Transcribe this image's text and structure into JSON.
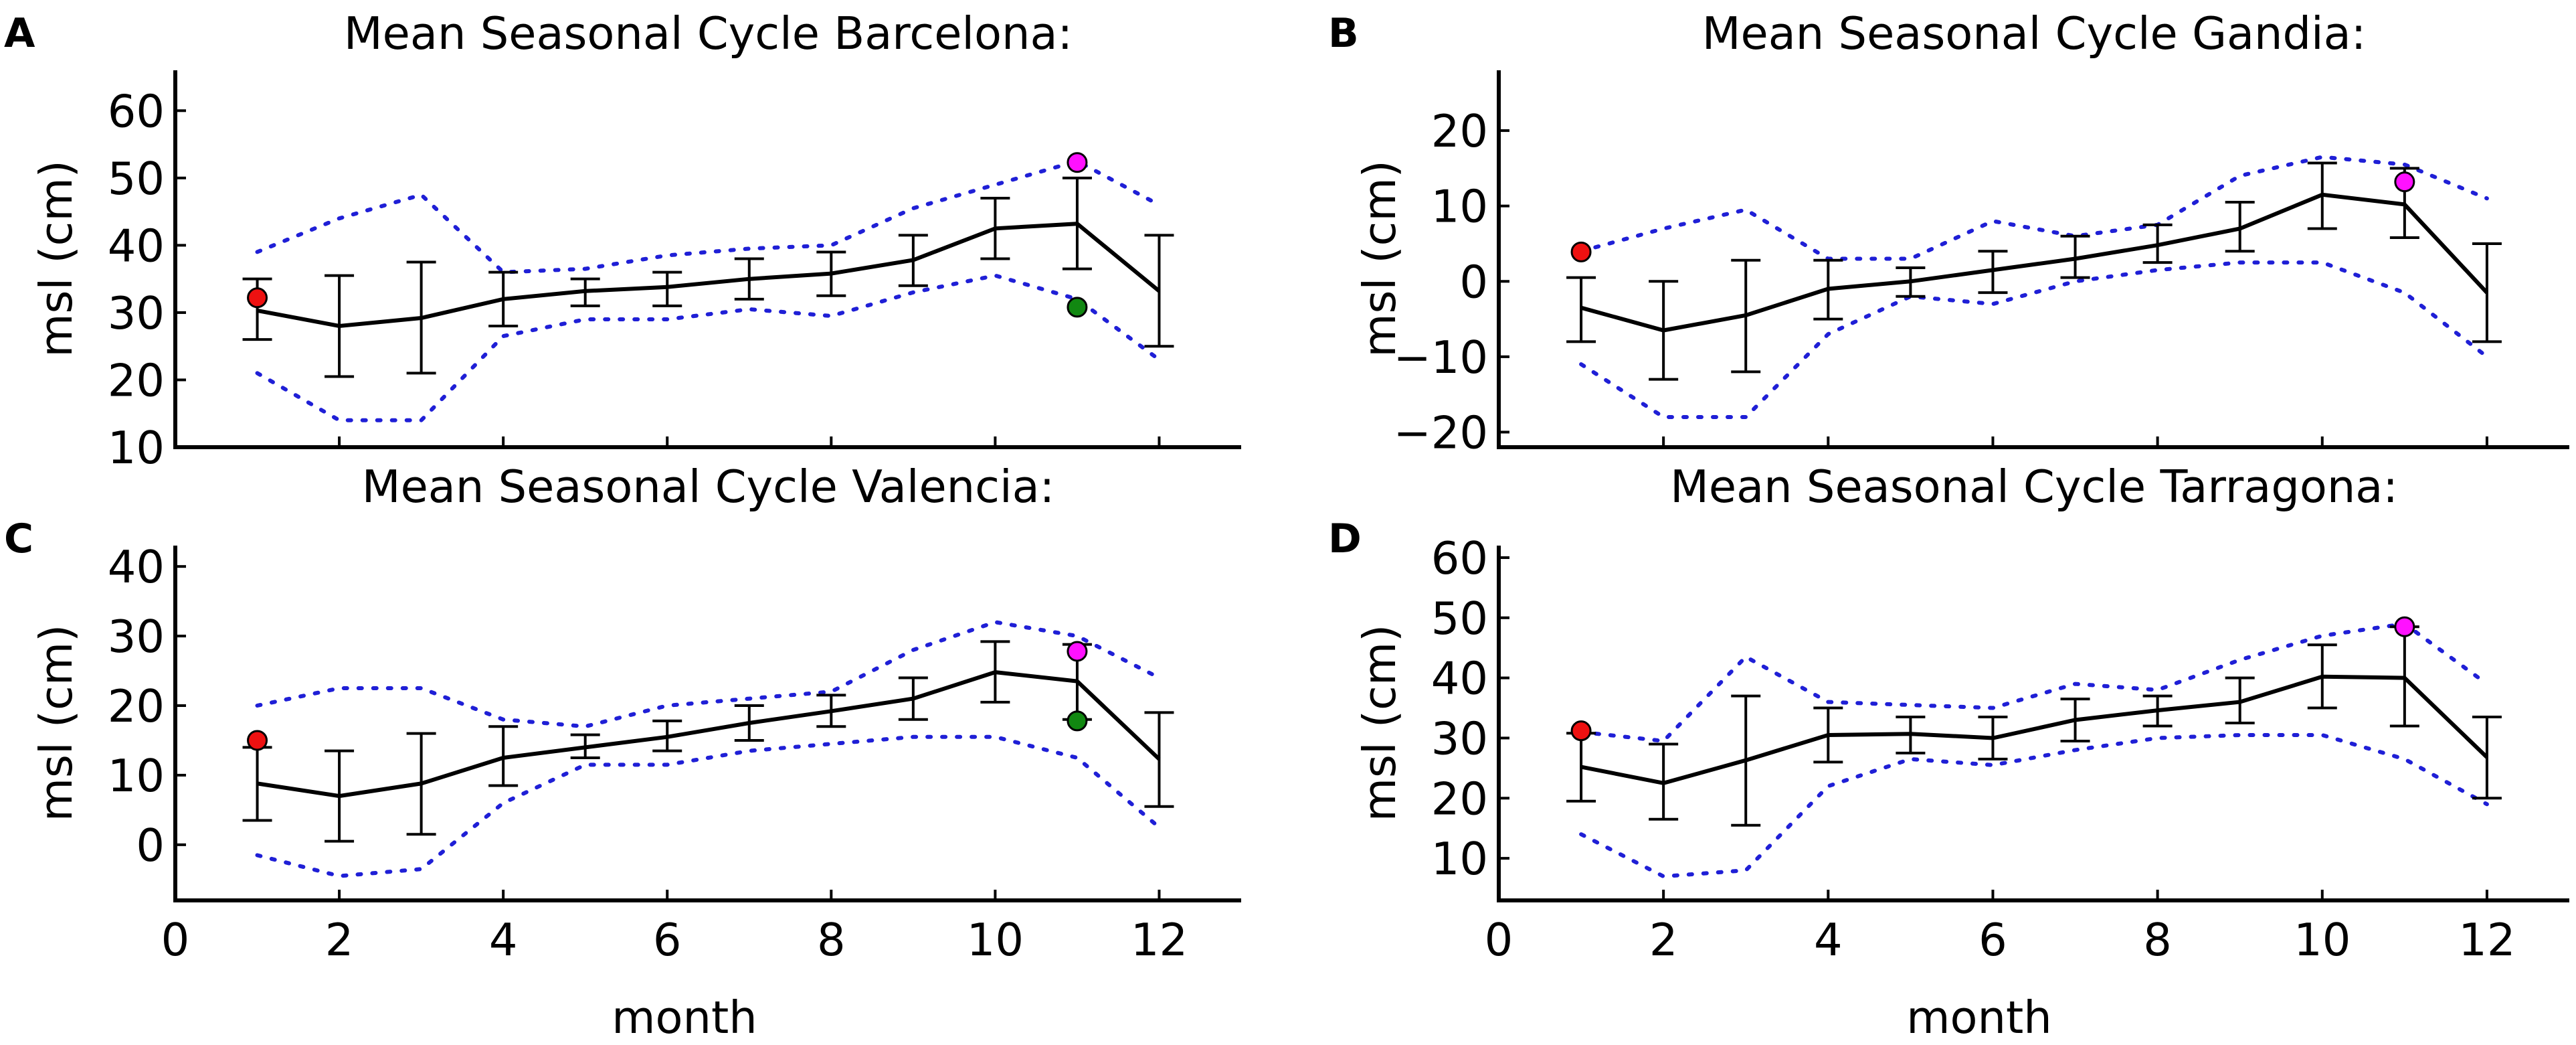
{
  "figure": {
    "xlabel_bottom": "month"
  },
  "colors": {
    "mean": "#000000",
    "bounds": "#1f1fd6",
    "red": "#ee1111",
    "magenta": "#ff11ff",
    "green": "#118811"
  },
  "chart_data": [
    {
      "letter": "A",
      "title": "Mean Seasonal Cycle Barcelona:",
      "type": "line",
      "ylabel": "msl (cm)",
      "xlabel": "",
      "xlim": [
        0,
        13
      ],
      "ylim": [
        10,
        66
      ],
      "xticks": [
        0,
        2,
        4,
        6,
        8,
        10,
        12
      ],
      "yticks": [
        10,
        20,
        30,
        40,
        50,
        60
      ],
      "series": [
        {
          "name": "mean",
          "x": [
            1,
            2,
            3,
            4,
            5,
            6,
            7,
            8,
            9,
            10,
            11,
            12
          ],
          "values": [
            30.3,
            28,
            29.2,
            32,
            33.2,
            33.8,
            35,
            35.8,
            37.8,
            42.5,
            43.2,
            33.2
          ]
        },
        {
          "name": "error_low",
          "x": [
            1,
            2,
            3,
            4,
            5,
            6,
            7,
            8,
            9,
            10,
            11,
            12
          ],
          "values": [
            26,
            20.5,
            21,
            28,
            31,
            31,
            32,
            32.5,
            34,
            38,
            36.5,
            25
          ]
        },
        {
          "name": "error_high",
          "x": [
            1,
            2,
            3,
            4,
            5,
            6,
            7,
            8,
            9,
            10,
            11,
            12
          ],
          "values": [
            35,
            35.5,
            37.5,
            36,
            35,
            36,
            38,
            39,
            41.5,
            47,
            50,
            41.5
          ]
        },
        {
          "name": "upper_bound",
          "x": [
            1,
            2,
            3,
            4,
            5,
            6,
            7,
            8,
            9,
            10,
            11,
            12
          ],
          "values": [
            39,
            44,
            47.5,
            36,
            36.5,
            38.5,
            39.5,
            40,
            45.5,
            49,
            52.5,
            46
          ]
        },
        {
          "name": "lower_bound",
          "x": [
            1,
            2,
            3,
            4,
            5,
            6,
            7,
            8,
            9,
            10,
            11,
            12
          ],
          "values": [
            21,
            14,
            14,
            26.5,
            29,
            29,
            30.5,
            29.5,
            33,
            35.5,
            32,
            23
          ]
        }
      ],
      "points": [
        {
          "color": "red",
          "x": 1,
          "y": 32.2
        },
        {
          "color": "magenta",
          "x": 11,
          "y": 52.3
        },
        {
          "color": "green",
          "x": 11,
          "y": 30.8
        }
      ]
    },
    {
      "letter": "B",
      "title": "Mean Seasonal Cycle Gandia:",
      "type": "line",
      "ylabel": "msl (cm)",
      "xlabel": "",
      "xlim": [
        0,
        13
      ],
      "ylim": [
        -22,
        28
      ],
      "xticks": [
        0,
        2,
        4,
        6,
        8,
        10,
        12
      ],
      "yticks": [
        -20,
        -10,
        0,
        10,
        20
      ],
      "ytick_labels": [
        "−20",
        "−10",
        "0",
        "10",
        "20"
      ],
      "series": [
        {
          "name": "mean",
          "x": [
            1,
            2,
            3,
            4,
            5,
            6,
            7,
            8,
            9,
            10,
            11,
            12
          ],
          "values": [
            -3.5,
            -6.5,
            -4.5,
            -1,
            0,
            1.5,
            3,
            4.8,
            7,
            11.5,
            10.2,
            -1.5
          ]
        },
        {
          "name": "error_low",
          "x": [
            1,
            2,
            3,
            4,
            5,
            6,
            7,
            8,
            9,
            10,
            11,
            12
          ],
          "values": [
            -8,
            -13,
            -12,
            -5,
            -2,
            -1.5,
            0.5,
            2.5,
            4,
            7,
            5.8,
            -8
          ]
        },
        {
          "name": "error_high",
          "x": [
            1,
            2,
            3,
            4,
            5,
            6,
            7,
            8,
            9,
            10,
            11,
            12
          ],
          "values": [
            0.5,
            0,
            2.8,
            2.8,
            1.8,
            4,
            6,
            7.5,
            10.5,
            15.7,
            15,
            5
          ]
        },
        {
          "name": "upper_bound",
          "x": [
            1,
            2,
            3,
            4,
            5,
            6,
            7,
            8,
            9,
            10,
            11,
            12
          ],
          "values": [
            4,
            7,
            9.5,
            3,
            3,
            8,
            6,
            7.5,
            14,
            16.5,
            15.5,
            11
          ]
        },
        {
          "name": "lower_bound",
          "x": [
            1,
            2,
            3,
            4,
            5,
            6,
            7,
            8,
            9,
            10,
            11,
            12
          ],
          "values": [
            -11,
            -18,
            -18,
            -7,
            -2,
            -3,
            0,
            1.5,
            2.5,
            2.5,
            -1.5,
            -10
          ]
        }
      ],
      "points": [
        {
          "color": "red",
          "x": 1,
          "y": 3.9
        },
        {
          "color": "magenta",
          "x": 11,
          "y": 13.2
        }
      ]
    },
    {
      "letter": "C",
      "title": "Mean Seasonal Cycle Valencia:",
      "type": "line",
      "ylabel": "msl (cm)",
      "xlabel": "",
      "xlim": [
        0,
        13
      ],
      "ylim": [
        -8,
        43
      ],
      "xticks": [
        0,
        2,
        4,
        6,
        8,
        10,
        12
      ],
      "yticks": [
        0,
        10,
        20,
        30,
        40
      ],
      "series": [
        {
          "name": "mean",
          "x": [
            1,
            2,
            3,
            4,
            5,
            6,
            7,
            8,
            9,
            10,
            11,
            12
          ],
          "values": [
            8.8,
            7,
            8.8,
            12.5,
            14,
            15.5,
            17.5,
            19.2,
            21,
            24.8,
            23.5,
            12.3
          ]
        },
        {
          "name": "error_low",
          "x": [
            1,
            2,
            3,
            4,
            5,
            6,
            7,
            8,
            9,
            10,
            11,
            12
          ],
          "values": [
            3.5,
            0.5,
            1.5,
            8.5,
            12.5,
            13.5,
            15,
            17,
            18,
            20.5,
            18,
            5.5
          ]
        },
        {
          "name": "error_high",
          "x": [
            1,
            2,
            3,
            4,
            5,
            6,
            7,
            8,
            9,
            10,
            11,
            12
          ],
          "values": [
            14,
            13.5,
            16,
            17,
            15.8,
            17.8,
            20,
            21.5,
            24,
            29.2,
            28.8,
            19
          ]
        },
        {
          "name": "upper_bound",
          "x": [
            1,
            2,
            3,
            4,
            5,
            6,
            7,
            8,
            9,
            10,
            11,
            12
          ],
          "values": [
            20,
            22.5,
            22.5,
            18,
            17,
            20,
            21,
            22,
            28,
            32,
            30,
            24
          ]
        },
        {
          "name": "lower_bound",
          "x": [
            1,
            2,
            3,
            4,
            5,
            6,
            7,
            8,
            9,
            10,
            11,
            12
          ],
          "values": [
            -1.5,
            -4.5,
            -3.5,
            6,
            11.5,
            11.5,
            13.5,
            14.5,
            15.5,
            15.5,
            12.5,
            2.5
          ]
        }
      ],
      "points": [
        {
          "color": "red",
          "x": 1,
          "y": 15
        },
        {
          "color": "magenta",
          "x": 11,
          "y": 27.8
        },
        {
          "color": "green",
          "x": 11,
          "y": 17.8
        }
      ]
    },
    {
      "letter": "D",
      "title": "Mean Seasonal Cycle Tarragona:",
      "type": "line",
      "ylabel": "msl (cm)",
      "xlabel": "month",
      "xlim": [
        0,
        13
      ],
      "ylim": [
        3,
        62
      ],
      "xticks": [
        0,
        2,
        4,
        6,
        8,
        10,
        12
      ],
      "yticks": [
        10,
        20,
        30,
        40,
        50,
        60
      ],
      "series": [
        {
          "name": "mean",
          "x": [
            1,
            2,
            3,
            4,
            5,
            6,
            7,
            8,
            9,
            10,
            11,
            12
          ],
          "values": [
            25.2,
            22.5,
            26.3,
            30.5,
            30.7,
            30,
            33,
            34.6,
            36,
            40.2,
            40,
            26.8
          ]
        },
        {
          "name": "error_low",
          "x": [
            1,
            2,
            3,
            4,
            5,
            6,
            7,
            8,
            9,
            10,
            11,
            12
          ],
          "values": [
            19.5,
            16.5,
            15.5,
            26,
            27.5,
            26.5,
            29.5,
            32,
            32.5,
            35,
            32,
            20
          ]
        },
        {
          "name": "error_high",
          "x": [
            1,
            2,
            3,
            4,
            5,
            6,
            7,
            8,
            9,
            10,
            11,
            12
          ],
          "values": [
            30.8,
            29,
            37,
            35,
            33.5,
            33.5,
            36.5,
            37,
            40,
            45.5,
            48.5,
            33.5
          ]
        },
        {
          "name": "upper_bound",
          "x": [
            1,
            2,
            3,
            4,
            5,
            6,
            7,
            8,
            9,
            10,
            11,
            12
          ],
          "values": [
            31,
            29.5,
            43.5,
            36,
            35.5,
            35,
            39,
            38,
            43,
            47,
            49,
            39
          ]
        },
        {
          "name": "lower_bound",
          "x": [
            1,
            2,
            3,
            4,
            5,
            6,
            7,
            8,
            9,
            10,
            11,
            12
          ],
          "values": [
            14,
            7,
            8,
            22,
            26.5,
            25.5,
            28,
            30,
            30.5,
            30.5,
            26.5,
            19
          ]
        }
      ],
      "points": [
        {
          "color": "red",
          "x": 1,
          "y": 31.2
        },
        {
          "color": "magenta",
          "x": 11,
          "y": 48.5
        }
      ]
    }
  ]
}
